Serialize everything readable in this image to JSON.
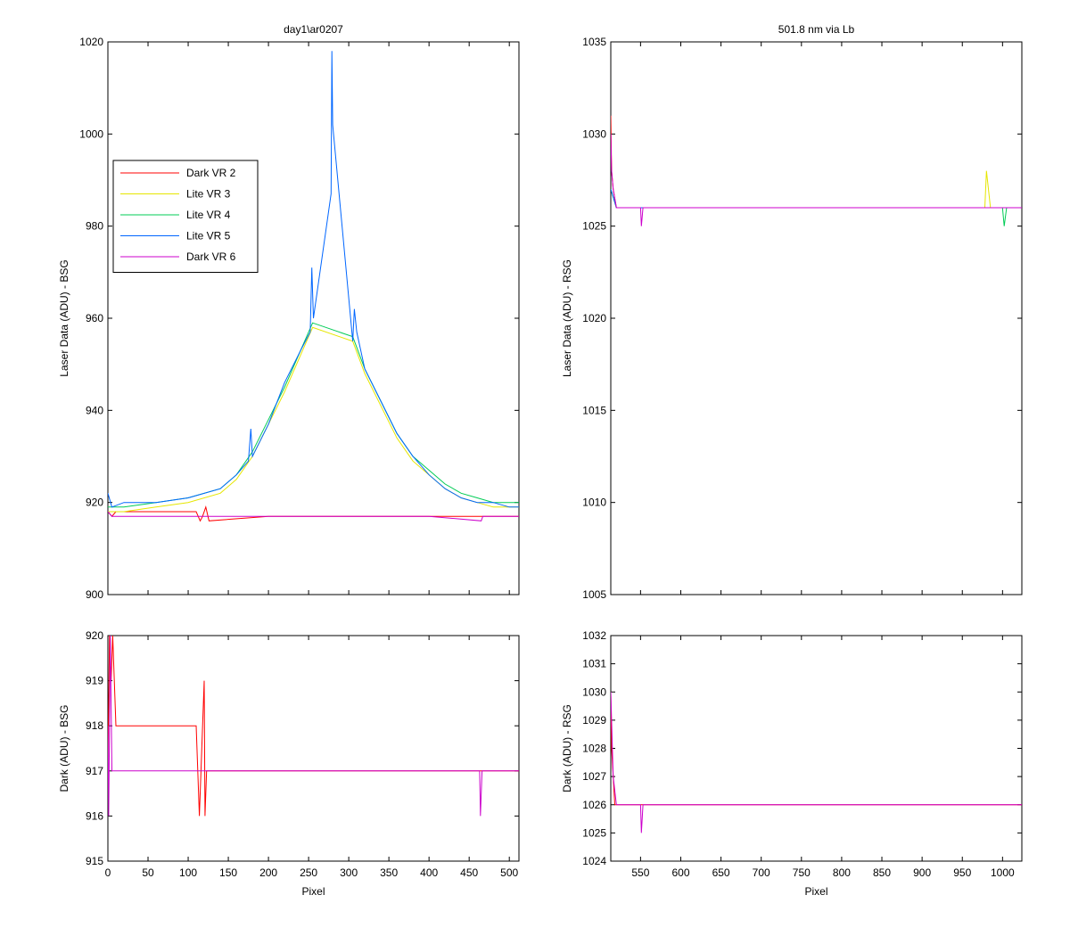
{
  "chart_data": [
    {
      "id": "laser_bsg",
      "type": "line",
      "title": "day1\\ar0207",
      "xlabel": "",
      "ylabel": "Laser Data (ADU) - BSG",
      "xlim": [
        0,
        512
      ],
      "ylim": [
        900,
        1020
      ],
      "yticks": [
        "900",
        "920",
        "940",
        "960",
        "980",
        "1000",
        "1020"
      ],
      "xticks": [],
      "legend": {
        "position": "left",
        "entries": [
          "Dark VR 2",
          "Lite VR 3",
          "Lite VR 4",
          "Lite VR 5",
          "Dark VR 6"
        ]
      },
      "series": [
        {
          "name": "Dark VR 2",
          "color": "#ff0000",
          "x": [
            0,
            5,
            10,
            110,
            115,
            118,
            122,
            126,
            200,
            300,
            400,
            500,
            512
          ],
          "y": [
            918,
            917,
            918,
            918,
            916,
            917,
            919,
            916,
            917,
            917,
            917,
            917,
            917
          ]
        },
        {
          "name": "Lite VR 3",
          "color": "#e6e600",
          "x": [
            0,
            20,
            60,
            100,
            140,
            160,
            180,
            200,
            220,
            240,
            255,
            305,
            320,
            340,
            360,
            380,
            400,
            420,
            440,
            460,
            480,
            500,
            512
          ],
          "y": [
            918,
            918,
            919,
            920,
            922,
            925,
            930,
            937,
            944,
            952,
            958,
            955,
            948,
            941,
            934,
            929,
            926,
            923,
            921,
            920,
            919,
            919,
            919
          ]
        },
        {
          "name": "Lite VR 4",
          "color": "#00cc55",
          "x": [
            0,
            20,
            60,
            100,
            140,
            160,
            180,
            200,
            220,
            240,
            255,
            305,
            320,
            340,
            360,
            380,
            400,
            420,
            440,
            460,
            480,
            500,
            512
          ],
          "y": [
            919,
            919,
            920,
            921,
            923,
            926,
            931,
            938,
            945,
            953,
            959,
            956,
            949,
            942,
            935,
            930,
            927,
            924,
            922,
            921,
            920,
            920,
            920
          ]
        },
        {
          "name": "Lite VR 5",
          "color": "#0066ff",
          "x": [
            0,
            5,
            20,
            60,
            100,
            140,
            160,
            175,
            178,
            180,
            200,
            220,
            240,
            252,
            254,
            256,
            278,
            279,
            280,
            305,
            307,
            310,
            320,
            340,
            360,
            380,
            400,
            420,
            440,
            460,
            480,
            500,
            512
          ],
          "y": [
            922,
            919,
            920,
            920,
            921,
            923,
            926,
            929,
            936,
            930,
            937,
            946,
            953,
            957,
            971,
            960,
            987,
            1018,
            1002,
            955,
            962,
            957,
            949,
            942,
            935,
            930,
            926,
            923,
            921,
            920,
            920,
            919,
            919
          ]
        },
        {
          "name": "Dark VR 6",
          "color": "#cc00cc",
          "x": [
            0,
            5,
            10,
            100,
            200,
            300,
            400,
            465,
            467,
            470,
            512
          ],
          "y": [
            918,
            917,
            917,
            917,
            917,
            917,
            917,
            916,
            917,
            917,
            917
          ]
        }
      ]
    },
    {
      "id": "laser_rsg",
      "type": "line",
      "title": "501.8 nm via Lb",
      "xlabel": "",
      "ylabel": "Laser Data (ADU) - RSG",
      "xlim": [
        513,
        1024
      ],
      "ylim": [
        1005,
        1035
      ],
      "yticks": [
        "1005",
        "1010",
        "1015",
        "1020",
        "1025",
        "1030",
        "1035"
      ],
      "xticks": [],
      "series": [
        {
          "name": "Dark VR 2",
          "color": "#ff0000",
          "x": [
            513,
            514,
            516,
            520,
            600,
            700,
            800,
            900,
            1000,
            1024
          ],
          "y": [
            1031,
            1028,
            1027,
            1026,
            1026,
            1026,
            1026,
            1026,
            1026,
            1026
          ]
        },
        {
          "name": "Lite VR 3",
          "color": "#e6e600",
          "x": [
            513,
            520,
            600,
            700,
            800,
            900,
            978,
            980,
            985,
            1024
          ],
          "y": [
            1027,
            1026,
            1026,
            1026,
            1026,
            1026,
            1026,
            1028,
            1026,
            1026
          ]
        },
        {
          "name": "Lite VR 4",
          "color": "#00cc55",
          "x": [
            513,
            520,
            600,
            700,
            800,
            900,
            1000,
            1002,
            1005,
            1024
          ],
          "y": [
            1027,
            1026,
            1026,
            1026,
            1026,
            1026,
            1026,
            1025,
            1026,
            1026
          ]
        },
        {
          "name": "Lite VR 5",
          "color": "#0066ff",
          "x": [
            513,
            520,
            600,
            700,
            800,
            900,
            1000,
            1024
          ],
          "y": [
            1027,
            1026,
            1026,
            1026,
            1026,
            1026,
            1026,
            1026
          ]
        },
        {
          "name": "Dark VR 6",
          "color": "#cc00cc",
          "x": [
            513,
            514,
            516,
            520,
            550,
            551,
            553,
            600,
            700,
            800,
            900,
            1000,
            1024
          ],
          "y": [
            1030,
            1028,
            1027,
            1026,
            1026,
            1025,
            1026,
            1026,
            1026,
            1026,
            1026,
            1026,
            1026
          ]
        }
      ]
    },
    {
      "id": "dark_bsg",
      "type": "line",
      "title": "",
      "xlabel": "Pixel",
      "ylabel": "Dark (ADU) - BSG",
      "xlim": [
        0,
        512
      ],
      "ylim": [
        915,
        920
      ],
      "yticks": [
        "915",
        "916",
        "917",
        "918",
        "919",
        "920"
      ],
      "xticks": [
        "0",
        "50",
        "100",
        "150",
        "200",
        "250",
        "300",
        "350",
        "400",
        "450",
        "500"
      ],
      "series": [
        {
          "name": "Dark VR 2",
          "color": "#ff0000",
          "x": [
            0,
            2,
            4,
            6,
            10,
            110,
            114,
            116,
            120,
            121,
            123,
            126,
            512
          ],
          "y": [
            917,
            920,
            919,
            920,
            918,
            918,
            916,
            917,
            919,
            916,
            917,
            917,
            917
          ]
        },
        {
          "name": "Dark VR 6",
          "color": "#cc00cc",
          "x": [
            0,
            1,
            3,
            5,
            8,
            200,
            400,
            463,
            464,
            466,
            512
          ],
          "y": [
            918,
            916,
            920,
            917,
            917,
            917,
            917,
            917,
            916,
            917,
            917
          ]
        }
      ]
    },
    {
      "id": "dark_rsg",
      "type": "line",
      "title": "",
      "xlabel": "Pixel",
      "ylabel": "Dark (ADU) - RSG",
      "xlim": [
        513,
        1024
      ],
      "ylim": [
        1024,
        1032
      ],
      "yticks": [
        "1024",
        "1025",
        "1026",
        "1027",
        "1028",
        "1029",
        "1030",
        "1031",
        "1032"
      ],
      "xticks": [
        "550",
        "600",
        "650",
        "700",
        "750",
        "800",
        "850",
        "900",
        "950",
        "1000"
      ],
      "series": [
        {
          "name": "Dark VR 2",
          "color": "#ff0000",
          "x": [
            513,
            514,
            516,
            518,
            520,
            1024
          ],
          "y": [
            1030,
            1028,
            1027,
            1026,
            1026,
            1026
          ]
        },
        {
          "name": "Dark VR 6",
          "color": "#cc00cc",
          "x": [
            513,
            514,
            516,
            520,
            550,
            551,
            553,
            1024
          ],
          "y": [
            1030,
            1029,
            1027,
            1026,
            1026,
            1025,
            1026,
            1026
          ]
        }
      ]
    }
  ]
}
